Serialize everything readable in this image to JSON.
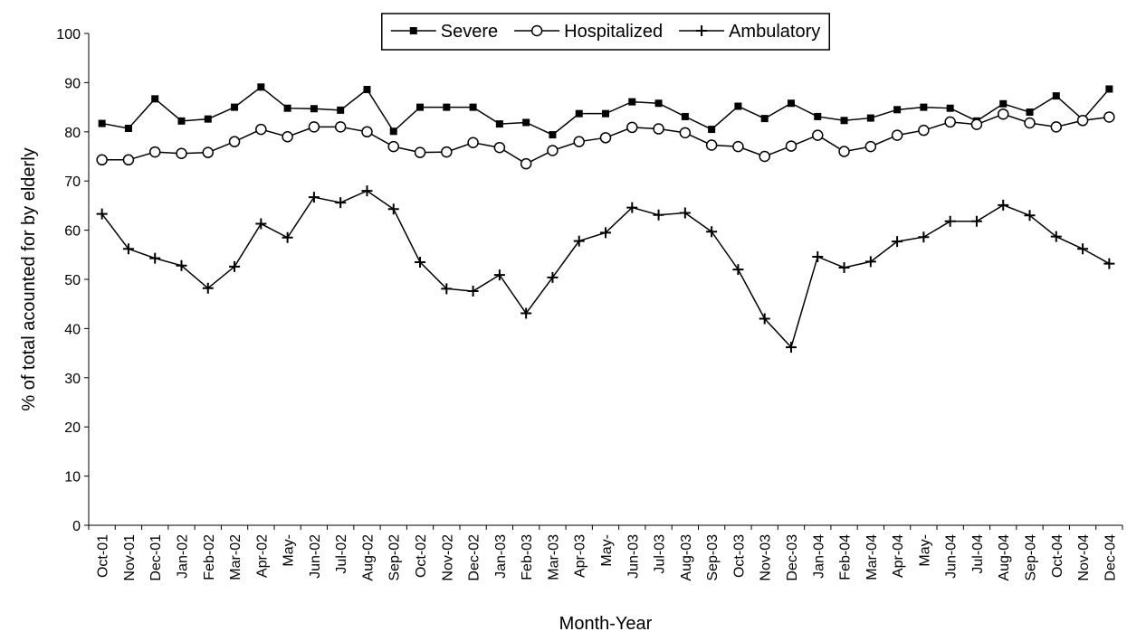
{
  "chart_data": {
    "type": "line",
    "y_label": "% of total acounted for by elderly",
    "x_label": "Month-Year",
    "categories": [
      "Oct-01",
      "Nov-01",
      "Dec-01",
      "Jan-02",
      "Feb-02",
      "Mar-02",
      "Apr-02",
      "May-",
      "Jun-02",
      "Jul-02",
      "Aug-02",
      "Sep-02",
      "Oct-02",
      "Nov-02",
      "Dec-02",
      "Jan-03",
      "Feb-03",
      "Mar-03",
      "Apr-03",
      "May-",
      "Jun-03",
      "Jul-03",
      "Aug-03",
      "Sep-03",
      "Oct-03",
      "Nov-03",
      "Dec-03",
      "Jan-04",
      "Feb-04",
      "Mar-04",
      "Apr-04",
      "May-",
      "Jun-04",
      "Jul-04",
      "Aug-04",
      "Sep-04",
      "Oct-04",
      "Nov-04",
      "Dec-04"
    ],
    "series": [
      {
        "name": "Severe",
        "color": "#000000",
        "marker": "square",
        "values": [
          81.7,
          80.7,
          86.7,
          82.2,
          82.6,
          85.0,
          89.1,
          84.8,
          84.7,
          84.4,
          88.6,
          80.1,
          85.0,
          85.0,
          85.0,
          81.6,
          81.9,
          79.4,
          83.7,
          83.7,
          86.1,
          85.8,
          83.1,
          80.5,
          85.2,
          82.7,
          85.8,
          83.1,
          82.3,
          82.8,
          84.5,
          85.0,
          84.8,
          82.2,
          85.7,
          84.0,
          87.3,
          82.5,
          88.7
        ]
      },
      {
        "name": "Hospitalized",
        "color": "#000000",
        "marker": "circle",
        "values": [
          74.3,
          74.3,
          75.9,
          75.6,
          75.8,
          78.0,
          80.5,
          79.0,
          81.0,
          81.0,
          80.0,
          77.0,
          75.8,
          75.9,
          77.8,
          76.8,
          73.5,
          76.2,
          78.0,
          78.8,
          80.9,
          80.6,
          79.8,
          77.3,
          77.0,
          75.0,
          77.1,
          79.3,
          76.0,
          77.0,
          79.3,
          80.3,
          82.0,
          81.5,
          83.6,
          81.8,
          81.0,
          82.3,
          83.0
        ]
      },
      {
        "name": "Ambulatory",
        "color": "#000000",
        "marker": "plus",
        "values": [
          63.3,
          56.2,
          54.3,
          52.8,
          48.2,
          52.6,
          61.3,
          58.5,
          66.7,
          65.6,
          68.0,
          64.3,
          53.5,
          48.1,
          47.6,
          50.9,
          43.1,
          50.4,
          57.8,
          59.5,
          64.6,
          63.1,
          63.5,
          59.7,
          52.0,
          42.0,
          36.2,
          54.6,
          52.4,
          53.6,
          57.7,
          58.6,
          61.8,
          61.8,
          65.1,
          63.0,
          58.7,
          56.2,
          53.2
        ]
      }
    ],
    "ylim": [
      0,
      100
    ],
    "yticks": [
      0,
      10,
      20,
      30,
      40,
      50,
      60,
      70,
      80,
      90,
      100
    ],
    "grid": false,
    "legend": "top"
  }
}
